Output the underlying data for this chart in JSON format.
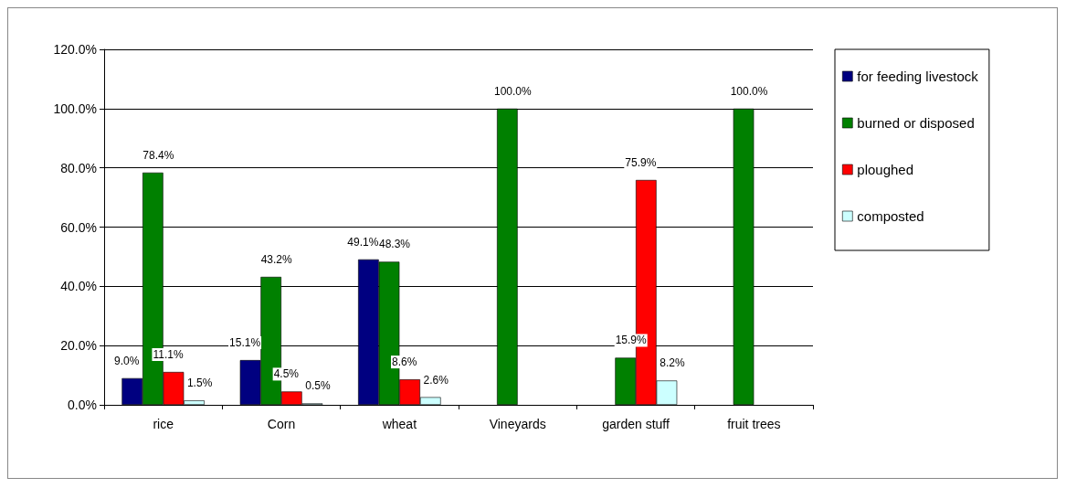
{
  "chart_data": {
    "type": "bar",
    "categories": [
      "rice",
      "Corn",
      "wheat",
      "Vineyards",
      "garden stuff",
      "fruit trees"
    ],
    "series": [
      {
        "name": "for feeding livestock",
        "color": "#000080",
        "values": [
          9.0,
          15.1,
          49.1,
          null,
          null,
          null
        ],
        "value_labels": [
          "9.0%",
          "15.1%",
          "49.1%",
          null,
          null,
          null
        ]
      },
      {
        "name": "burned or disposed",
        "color": "#008000",
        "values": [
          78.4,
          43.2,
          48.3,
          100.0,
          15.9,
          100.0
        ],
        "value_labels": [
          "78.4%",
          "43.2%",
          "48.3%",
          "100.0%",
          "15.9%",
          "100.0%"
        ]
      },
      {
        "name": "ploughed",
        "color": "#ff0000",
        "values": [
          11.1,
          4.5,
          8.6,
          null,
          75.9,
          null
        ],
        "value_labels": [
          "11.1%",
          "4.5%",
          "8.6%",
          null,
          "75.9%",
          null
        ]
      },
      {
        "name": "composted",
        "color": "#ccffff",
        "values": [
          1.5,
          0.5,
          2.6,
          null,
          8.2,
          null
        ],
        "value_labels": [
          "1.5%",
          "0.5%",
          "2.6%",
          null,
          "8.2%",
          null
        ]
      }
    ],
    "ylim": [
      0,
      120
    ],
    "yticks": [
      {
        "value": 0,
        "label": "0.0%"
      },
      {
        "value": 20,
        "label": "20.0%"
      },
      {
        "value": 40,
        "label": "40.0%"
      },
      {
        "value": 60,
        "label": "60.0%"
      },
      {
        "value": 80,
        "label": "80.0%"
      },
      {
        "value": 100,
        "label": "100.0%"
      },
      {
        "value": 120,
        "label": "120.0%"
      }
    ],
    "grid": "y",
    "legend": "right"
  }
}
